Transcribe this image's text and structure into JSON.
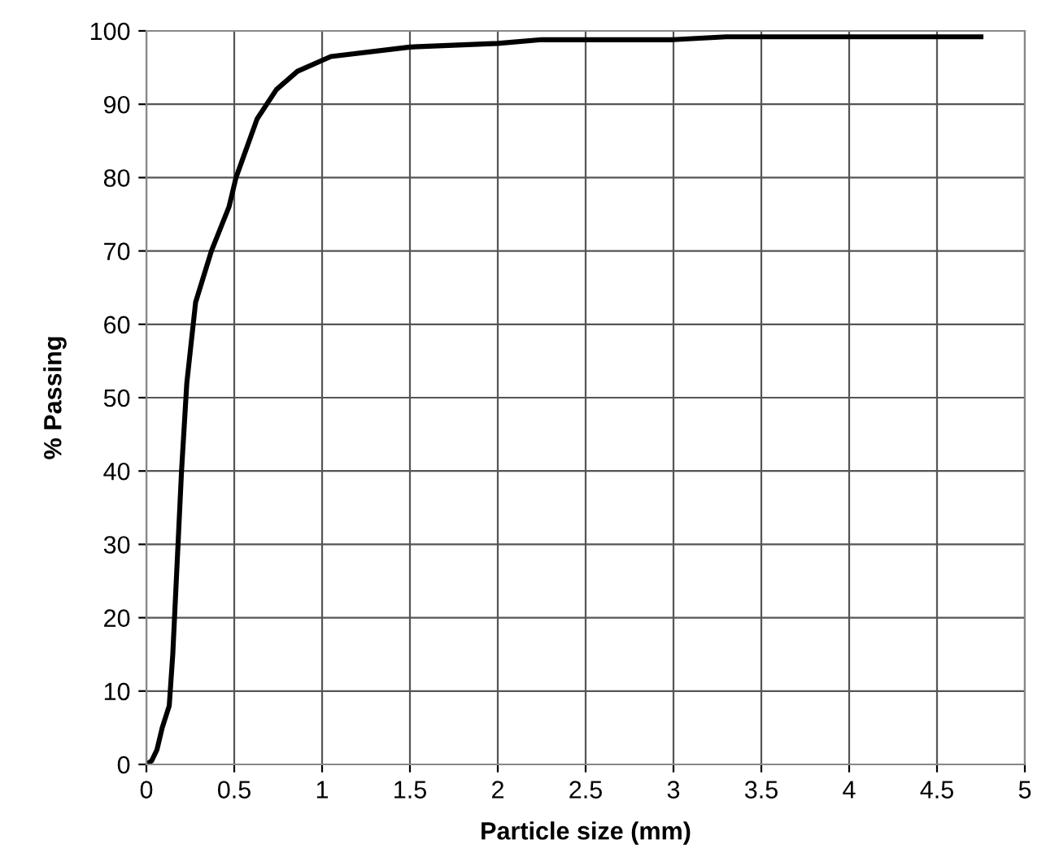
{
  "chart_data": {
    "type": "line",
    "xlabel": "Particle size (mm)",
    "ylabel": "% Passing",
    "series": [
      {
        "color": "#000000",
        "x": [
          0,
          0.03,
          0.06,
          0.09,
          0.13,
          0.15,
          0.16,
          0.2,
          0.23,
          0.28,
          0.37,
          0.47,
          0.51,
          0.63,
          0.74,
          0.86,
          1.05,
          1.5,
          2,
          2.25,
          3,
          3.3,
          4.75
        ],
        "values": [
          0,
          0.5,
          2,
          5,
          8,
          15,
          20,
          40,
          52,
          63,
          70,
          76,
          80,
          88,
          92,
          94.5,
          96.5,
          97.8,
          98.3,
          98.8,
          98.8,
          99.2,
          99.2
        ]
      }
    ],
    "xlim": [
      0,
      5
    ],
    "xticks": [
      0,
      0.5,
      1,
      1.5,
      2,
      2.5,
      3,
      3.5,
      4,
      4.5,
      5
    ],
    "ylim": [
      0,
      100
    ],
    "yticks": [
      0,
      10,
      20,
      30,
      40,
      50,
      60,
      70,
      80,
      90,
      100
    ],
    "grid": true,
    "legend": false,
    "marker": "none",
    "line_style": "solid"
  }
}
